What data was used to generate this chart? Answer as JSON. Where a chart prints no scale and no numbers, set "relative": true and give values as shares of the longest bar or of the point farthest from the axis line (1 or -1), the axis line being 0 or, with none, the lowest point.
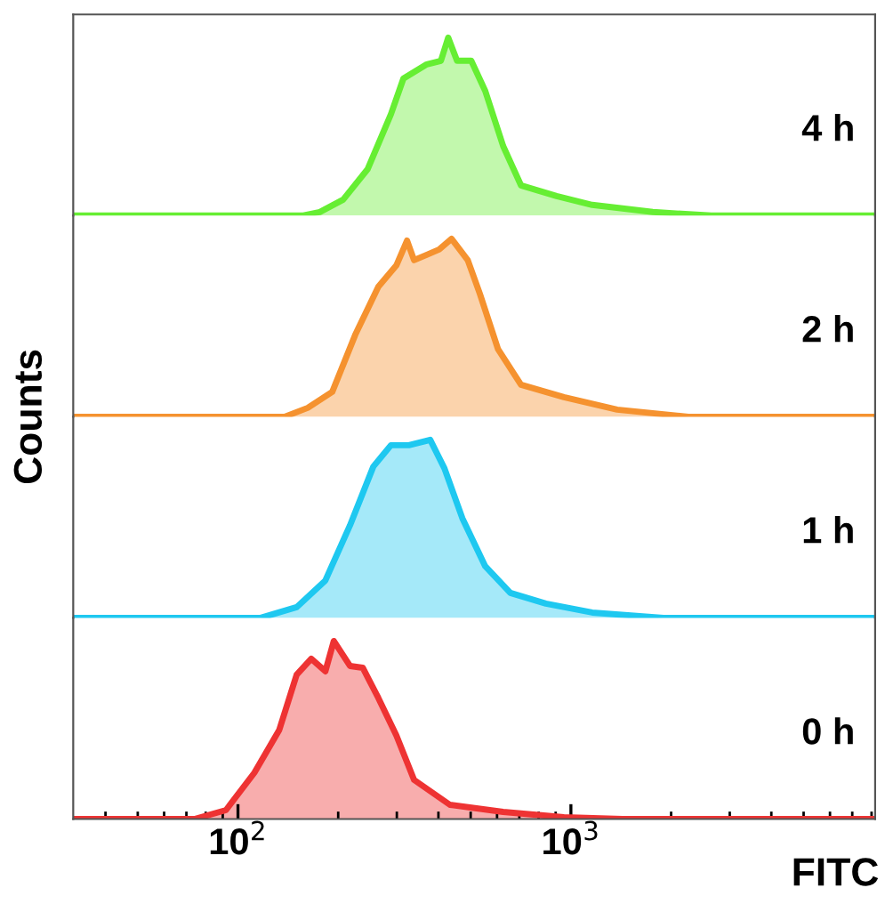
{
  "chart_data": [
    {
      "type": "area",
      "relative": true,
      "log": "x",
      "xlim": [
        32,
        8200
      ],
      "tick_labels": false,
      "ylabel": "Counts",
      "series": [
        {
          "name": "4 h",
          "color": "#66ee33",
          "x": [
            32,
            156,
            176,
            207,
            245,
            288,
            314,
            369,
            407,
            428,
            455,
            502,
            553,
            626,
            708,
            906,
            1159,
            1762,
            2642,
            8200
          ],
          "values": [
            0,
            0,
            0.02,
            0.09,
            0.26,
            0.57,
            0.77,
            0.85,
            0.87,
            1,
            0.87,
            0.87,
            0.7,
            0.39,
            0.17,
            0.11,
            0.06,
            0.02,
            0,
            0
          ]
        }
      ]
    },
    {
      "type": "area",
      "relative": true,
      "log": "x",
      "xlim": [
        32,
        8200
      ],
      "tick_labels": false,
      "series": [
        {
          "name": "2 h",
          "color": "#f5922f",
          "x": [
            32,
            138,
            162,
            192,
            225,
            264,
            299,
            322,
            338,
            369,
            402,
            438,
            490,
            533,
            604,
            708,
            953,
            1377,
            2254,
            8200
          ],
          "values": [
            0,
            0,
            0.05,
            0.14,
            0.46,
            0.73,
            0.85,
            0.99,
            0.88,
            0.91,
            0.94,
            1,
            0.88,
            0.69,
            0.38,
            0.18,
            0.11,
            0.04,
            0,
            0
          ]
        }
      ]
    },
    {
      "type": "area",
      "relative": true,
      "log": "x",
      "xlim": [
        32,
        8200
      ],
      "tick_labels": false,
      "series": [
        {
          "name": "1 h",
          "color": "#1ec8f0",
          "x": [
            32,
            117,
            150,
            183,
            217,
            255,
            288,
            326,
            378,
            417,
            472,
            553,
            658,
            841,
            1159,
            1897,
            8200
          ],
          "values": [
            0,
            0,
            0.06,
            0.21,
            0.52,
            0.85,
            0.97,
            0.97,
            1,
            0.84,
            0.56,
            0.29,
            0.14,
            0.08,
            0.03,
            0,
            0
          ]
        }
      ]
    },
    {
      "type": "area",
      "relative": true,
      "log": "x",
      "xlim": [
        32,
        8200
      ],
      "tick_labels": "x",
      "xlabel": "FITC",
      "xticks": [
        {
          "value": 100,
          "label": "10$^{2}$"
        },
        {
          "value": 1000,
          "label": "10$^{3}$"
        }
      ],
      "series": [
        {
          "name": "0 h",
          "color": "#ee3333",
          "x": [
            32,
            74,
            92,
            112,
            133,
            150,
            166,
            183,
            194,
            217,
            237,
            264,
            299,
            338,
            433,
            626,
            953,
            1429,
            8200
          ],
          "values": [
            0,
            0,
            0.05,
            0.26,
            0.5,
            0.81,
            0.9,
            0.83,
            1,
            0.86,
            0.85,
            0.68,
            0.47,
            0.22,
            0.08,
            0.04,
            0.01,
            0,
            0
          ]
        }
      ]
    }
  ]
}
